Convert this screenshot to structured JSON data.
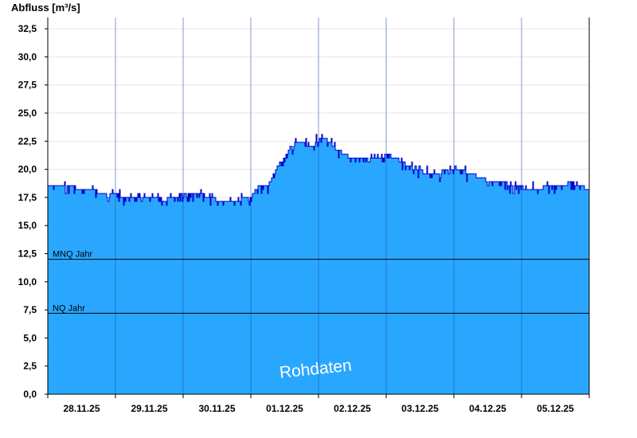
{
  "chart_data": {
    "type": "area",
    "ylabel": "Abfluss [m³/s]",
    "ylim": [
      0,
      33.5
    ],
    "y_ticks": [
      "0,0",
      "2,5",
      "5,0",
      "7,5",
      "10,0",
      "12,5",
      "15,0",
      "17,5",
      "20,0",
      "22,5",
      "25,0",
      "27,5",
      "30,0",
      "32,5"
    ],
    "y_tick_values": [
      0,
      2.5,
      5,
      7.5,
      10,
      12.5,
      15,
      17.5,
      20,
      22.5,
      25,
      27.5,
      30,
      32.5
    ],
    "x_ticks": [
      "28.11.25",
      "29.11.25",
      "30.11.25",
      "01.12.25",
      "02.12.25",
      "03.12.25",
      "04.12.25",
      "05.12.25"
    ],
    "x_range_days": [
      0,
      8
    ],
    "grid": true,
    "series": [
      {
        "fill_color": "#29a7ff",
        "line_color": "#0000cc",
        "x": [
          0,
          0.25,
          0.5,
          0.75,
          1.0,
          1.25,
          1.5,
          1.75,
          2.0,
          2.25,
          2.5,
          2.75,
          3.0,
          3.1,
          3.25,
          3.4,
          3.5,
          3.6,
          3.7,
          3.8,
          3.9,
          4.0,
          4.1,
          4.25,
          4.5,
          4.75,
          5.0,
          5.25,
          5.5,
          5.75,
          6.0,
          6.25,
          6.5,
          6.75,
          7.0,
          7.25,
          7.5,
          7.75,
          8.0
        ],
        "y": [
          18.6,
          18.5,
          18.3,
          18.0,
          17.7,
          17.6,
          17.4,
          17.3,
          17.8,
          17.8,
          17.3,
          17.1,
          17.6,
          18.5,
          18.5,
          20.4,
          21.0,
          22.0,
          22.5,
          22.2,
          22.1,
          22.8,
          22.8,
          21.8,
          21.0,
          20.8,
          21.4,
          20.6,
          19.8,
          19.6,
          20.2,
          19.6,
          19.0,
          18.8,
          18.4,
          18.3,
          18.6,
          18.8,
          18.2
        ],
        "noise": 0.45
      }
    ],
    "reference_lines": [
      {
        "label": "MNQ Jahr",
        "value": 12.0
      },
      {
        "label": "NQ Jahr",
        "value": 7.2
      }
    ],
    "watermark": "Rohdaten"
  }
}
